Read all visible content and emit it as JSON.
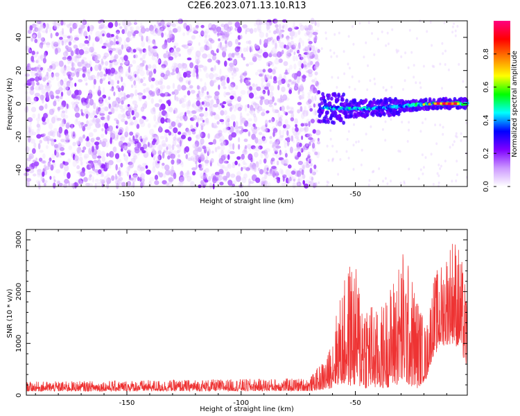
{
  "title": "C2E6.2023.071.13.10.R13",
  "chart_data": [
    {
      "type": "heatmap",
      "xlabel": "Height of straight line (km)",
      "ylabel": "Frequency (Hz)",
      "xlim": [
        -194,
        -1
      ],
      "ylim": [
        -50,
        50
      ],
      "x_ticks": [
        -150,
        -100,
        -50
      ],
      "y_ticks": [
        -40,
        -20,
        0,
        20,
        40
      ],
      "colorbar": {
        "label": "Normalized spectral amplitude",
        "range": [
          0,
          1
        ],
        "ticks": [
          "0.0",
          "0.2",
          "0.4",
          "0.6",
          "0.8"
        ],
        "colors": [
          "#ffffff",
          "#cc99ff",
          "#7f00ff",
          "#0000ff",
          "#00ffff",
          "#00ff00",
          "#ffff00",
          "#ff8000",
          "#ff0000",
          "#ff0080"
        ]
      },
      "regions": [
        {
          "name": "noise",
          "x_range": [
            -194,
            -66
          ],
          "freq_range": [
            -50,
            50
          ],
          "amplitude_range": [
            0.0,
            0.15
          ]
        },
        {
          "name": "signal band",
          "x_range": [
            -66,
            -1
          ],
          "center_freq": [
            [
              -66,
              -2
            ],
            [
              -55,
              -3
            ],
            [
              -45,
              -3
            ],
            [
              -35,
              -2
            ],
            [
              -25,
              -1
            ],
            [
              -15,
              0
            ],
            [
              -1,
              0
            ]
          ],
          "amplitude_peak": 0.95,
          "peak_x_range": [
            -15,
            -5
          ]
        }
      ]
    },
    {
      "type": "line",
      "xlabel": "Height of straight line (km)",
      "ylabel": "SNR (10 * v/v)",
      "xlim": [
        -194,
        -1
      ],
      "ylim": [
        0,
        3200
      ],
      "x_ticks": [
        -150,
        -100,
        -50
      ],
      "y_ticks": [
        0,
        1000,
        2000,
        3000
      ],
      "color": "#ee3333",
      "envelope": [
        {
          "x": -194,
          "base": 150,
          "peak": 260
        },
        {
          "x": -70,
          "base": 160,
          "peak": 330
        },
        {
          "x": -62,
          "base": 220,
          "peak": 800
        },
        {
          "x": -58,
          "base": 400,
          "peak": 1700
        },
        {
          "x": -52,
          "base": 350,
          "peak": 2700
        },
        {
          "x": -45,
          "base": 250,
          "peak": 2000
        },
        {
          "x": -40,
          "base": 250,
          "peak": 1600
        },
        {
          "x": -35,
          "base": 300,
          "peak": 2100
        },
        {
          "x": -29,
          "base": 450,
          "peak": 2900
        },
        {
          "x": -23,
          "base": 250,
          "peak": 2000
        },
        {
          "x": -19,
          "base": 600,
          "peak": 1300
        },
        {
          "x": -16,
          "base": 1500,
          "peak": 2300
        },
        {
          "x": -12,
          "base": 1900,
          "peak": 2600
        },
        {
          "x": -7,
          "base": 2000,
          "peak": 3200
        },
        {
          "x": -4,
          "base": 1700,
          "peak": 2800
        },
        {
          "x": -1,
          "base": 1000,
          "peak": 1900
        }
      ]
    }
  ]
}
